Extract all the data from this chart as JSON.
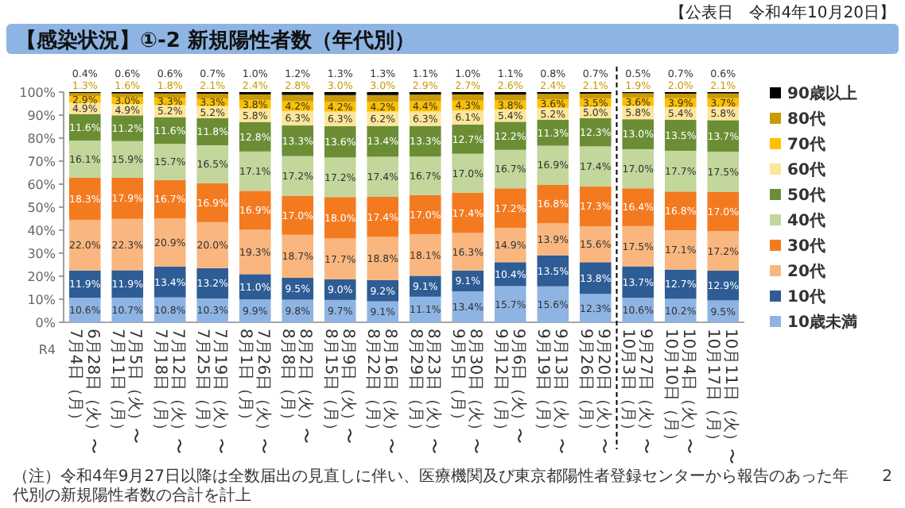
{
  "chart_data": {
    "type": "bar",
    "stacked": true,
    "title": "【感染状況】①-2 新規陽性者数（年代別）",
    "subtitle": "【公表日　令和4年10月20日】",
    "categories": [
      "6月28日（火）〜\n7月4日（月）",
      "7月5日（火）〜\n7月11日（月）",
      "7月12日（火）〜\n7月18日（月）",
      "7月19日（火）〜\n7月25日（月）",
      "7月26日（火）〜\n8月1日（月）",
      "8月2日（火）〜\n8月8日（月）",
      "8月9日（火）〜\n8月15日（月）",
      "8月16日（火）〜\n8月22日（月）",
      "8月23日（火）〜\n8月29日（月）",
      "8月30日（火）〜\n9月5日（月）",
      "9月6日（火）〜\n9月12日（月）",
      "9月13日（火）〜\n9月19日（月）",
      "9月20日（火）〜\n9月26日（月）",
      "9月27日（火）〜\n10月3日（月）",
      "10月4日（火）〜\n10月10日（月）",
      "10月11日（火）〜\n10月17日（月）"
    ],
    "series": [
      {
        "name": "10歳未満",
        "color": "#8eb4e3",
        "values": [
          10.6,
          10.7,
          10.8,
          10.3,
          9.9,
          9.8,
          9.7,
          9.1,
          11.1,
          13.4,
          15.7,
          15.6,
          12.3,
          10.6,
          10.2,
          9.5
        ],
        "value_labels": [
          "10.6%",
          "10.7%",
          "10.8%",
          "10.3%",
          "9.9%",
          "9.8%",
          "9.7%",
          "9.1%",
          "11.1%",
          "13.4%",
          "15.7%",
          "15.6%",
          "12.3%",
          "10.6%",
          "10.2%",
          "9.5%"
        ]
      },
      {
        "name": "10代",
        "color": "#2e5c94",
        "values": [
          11.9,
          11.9,
          13.4,
          13.2,
          11.0,
          9.5,
          9.0,
          9.2,
          9.1,
          9.1,
          10.4,
          13.5,
          13.8,
          13.7,
          12.7,
          12.9
        ],
        "value_labels": [
          "11.9%",
          "11.9%",
          "13.4%",
          "13.2%",
          "11.0%",
          "9.5%",
          "9.0%",
          "9.2%",
          "9.1%",
          "9.1%",
          "10.4%",
          "13.5%",
          "13.8%",
          "13.7%",
          "12.7%",
          "12.9%"
        ]
      },
      {
        "name": "20代",
        "color": "#f9b77f",
        "values": [
          22.0,
          22.3,
          20.9,
          20.0,
          19.3,
          18.7,
          17.7,
          18.8,
          18.1,
          16.3,
          14.9,
          13.9,
          15.6,
          17.5,
          17.1,
          17.2
        ],
        "value_labels": [
          "22.0%",
          "22.3%",
          "20.9%",
          "20.0%",
          "19.3%",
          "18.7%",
          "17.7%",
          "18.8%",
          "18.1%",
          "16.3%",
          "14.9%",
          "13.9%",
          "15.6%",
          "17.5%",
          "17.1%",
          "17.2%"
        ]
      },
      {
        "name": "30代",
        "color": "#f47a20",
        "values": [
          18.3,
          17.9,
          16.7,
          16.9,
          16.9,
          17.0,
          18.0,
          17.4,
          17.0,
          17.4,
          17.2,
          16.8,
          17.3,
          16.4,
          16.8,
          17.0
        ],
        "value_labels": [
          "18.3%",
          "17.9%",
          "16.7%",
          "16.9%",
          "16.9%",
          "17.0%",
          "18.0%",
          "17.4%",
          "17.0%",
          "17.4%",
          "17.2%",
          "16.8%",
          "17.3%",
          "16.4%",
          "16.8%",
          "17.0%"
        ]
      },
      {
        "name": "40代",
        "color": "#c3d69b",
        "values": [
          16.1,
          15.9,
          15.7,
          16.5,
          17.1,
          17.2,
          17.2,
          17.4,
          16.7,
          17.0,
          16.7,
          16.9,
          17.4,
          17.0,
          17.7,
          17.5
        ],
        "value_labels": [
          "16.1%",
          "15.9%",
          "15.7%",
          "16.5%",
          "17.1%",
          "17.2%",
          "17.2%",
          "17.4%",
          "16.7%",
          "17.0%",
          "16.7%",
          "16.9%",
          "17.4%",
          "17.0%",
          "17.7%",
          "17.5%"
        ]
      },
      {
        "name": "50代",
        "color": "#6b8e35",
        "values": [
          11.6,
          11.2,
          11.6,
          11.8,
          12.8,
          13.3,
          13.6,
          13.4,
          13.3,
          12.7,
          12.2,
          11.3,
          12.3,
          13.0,
          13.5,
          13.7
        ],
        "value_labels": [
          "11.6%",
          "11.2%",
          "11.6%",
          "11.8%",
          "12.8%",
          "13.3%",
          "13.6%",
          "13.4%",
          "13.3%",
          "12.7%",
          "12.2%",
          "11.3%",
          "12.3%",
          "13.0%",
          "13.5%",
          "13.7%"
        ]
      },
      {
        "name": "60代",
        "color": "#fde59a",
        "values": [
          4.9,
          4.9,
          5.2,
          5.2,
          5.8,
          6.3,
          6.3,
          6.2,
          6.3,
          6.1,
          5.4,
          5.2,
          5.0,
          5.8,
          5.4,
          5.8
        ],
        "value_labels": [
          "4.9%",
          "4.9%",
          "5.2%",
          "5.2%",
          "5.8%",
          "6.3%",
          "6.3%",
          "6.2%",
          "6.3%",
          "6.1%",
          "5.4%",
          "5.2%",
          "5.0%",
          "5.8%",
          "5.4%",
          "5.8%"
        ]
      },
      {
        "name": "70代",
        "color": "#ffc000",
        "values": [
          2.9,
          3.0,
          3.3,
          3.3,
          3.8,
          4.2,
          4.2,
          4.2,
          4.4,
          4.3,
          3.8,
          3.6,
          3.5,
          3.6,
          3.9,
          3.7
        ],
        "value_labels": [
          "2.9%",
          "3.0%",
          "3.3%",
          "3.3%",
          "3.8%",
          "4.2%",
          "4.2%",
          "4.2%",
          "4.4%",
          "4.3%",
          "3.8%",
          "3.6%",
          "3.5%",
          "3.6%",
          "3.9%",
          "3.7%"
        ]
      },
      {
        "name": "80代",
        "color": "#c99a06",
        "values": [
          1.3,
          1.6,
          1.8,
          2.1,
          2.4,
          2.8,
          3.0,
          3.0,
          2.9,
          2.7,
          2.6,
          2.4,
          2.1,
          1.9,
          2.0,
          2.1
        ],
        "value_labels": [
          "1.3%",
          "1.6%",
          "1.8%",
          "2.1%",
          "2.4%",
          "2.8%",
          "3.0%",
          "3.0%",
          "2.9%",
          "2.7%",
          "2.6%",
          "2.4%",
          "2.1%",
          "1.9%",
          "2.0%",
          "2.1%"
        ]
      },
      {
        "name": "90歳以上",
        "color": "#000000",
        "values": [
          0.4,
          0.6,
          0.6,
          0.7,
          1.0,
          1.2,
          1.3,
          1.3,
          1.1,
          1.0,
          1.1,
          0.8,
          0.7,
          0.5,
          0.7,
          0.6
        ],
        "value_labels": [
          "0.4%",
          "0.6%",
          "0.6%",
          "0.7%",
          "1.0%",
          "1.2%",
          "1.3%",
          "1.3%",
          "1.1%",
          "1.0%",
          "1.1%",
          "0.8%",
          "0.7%",
          "0.5%",
          "0.7%",
          "0.6%"
        ]
      }
    ],
    "ylim": [
      0,
      100
    ],
    "yticks": [
      {
        "value": 0,
        "label": "0%"
      },
      {
        "value": 10,
        "label": "10%"
      },
      {
        "value": 20,
        "label": "20%"
      },
      {
        "value": 30,
        "label": "30%"
      },
      {
        "value": 40,
        "label": "40%"
      },
      {
        "value": 50,
        "label": "50%"
      },
      {
        "value": 60,
        "label": "60%"
      },
      {
        "value": 70,
        "label": "70%"
      },
      {
        "value": 80,
        "label": "80%"
      },
      {
        "value": 90,
        "label": "90%"
      },
      {
        "value": 100,
        "label": "100%"
      }
    ],
    "legend": "right",
    "annotations": [
      "R4",
      "（注）令和4年9月27日以降は全数届出の見直しに伴い、医療機関及び東京都陽性者登録センターから報告のあった年代別の新規陽性者数の合計を計上",
      "2"
    ]
  }
}
